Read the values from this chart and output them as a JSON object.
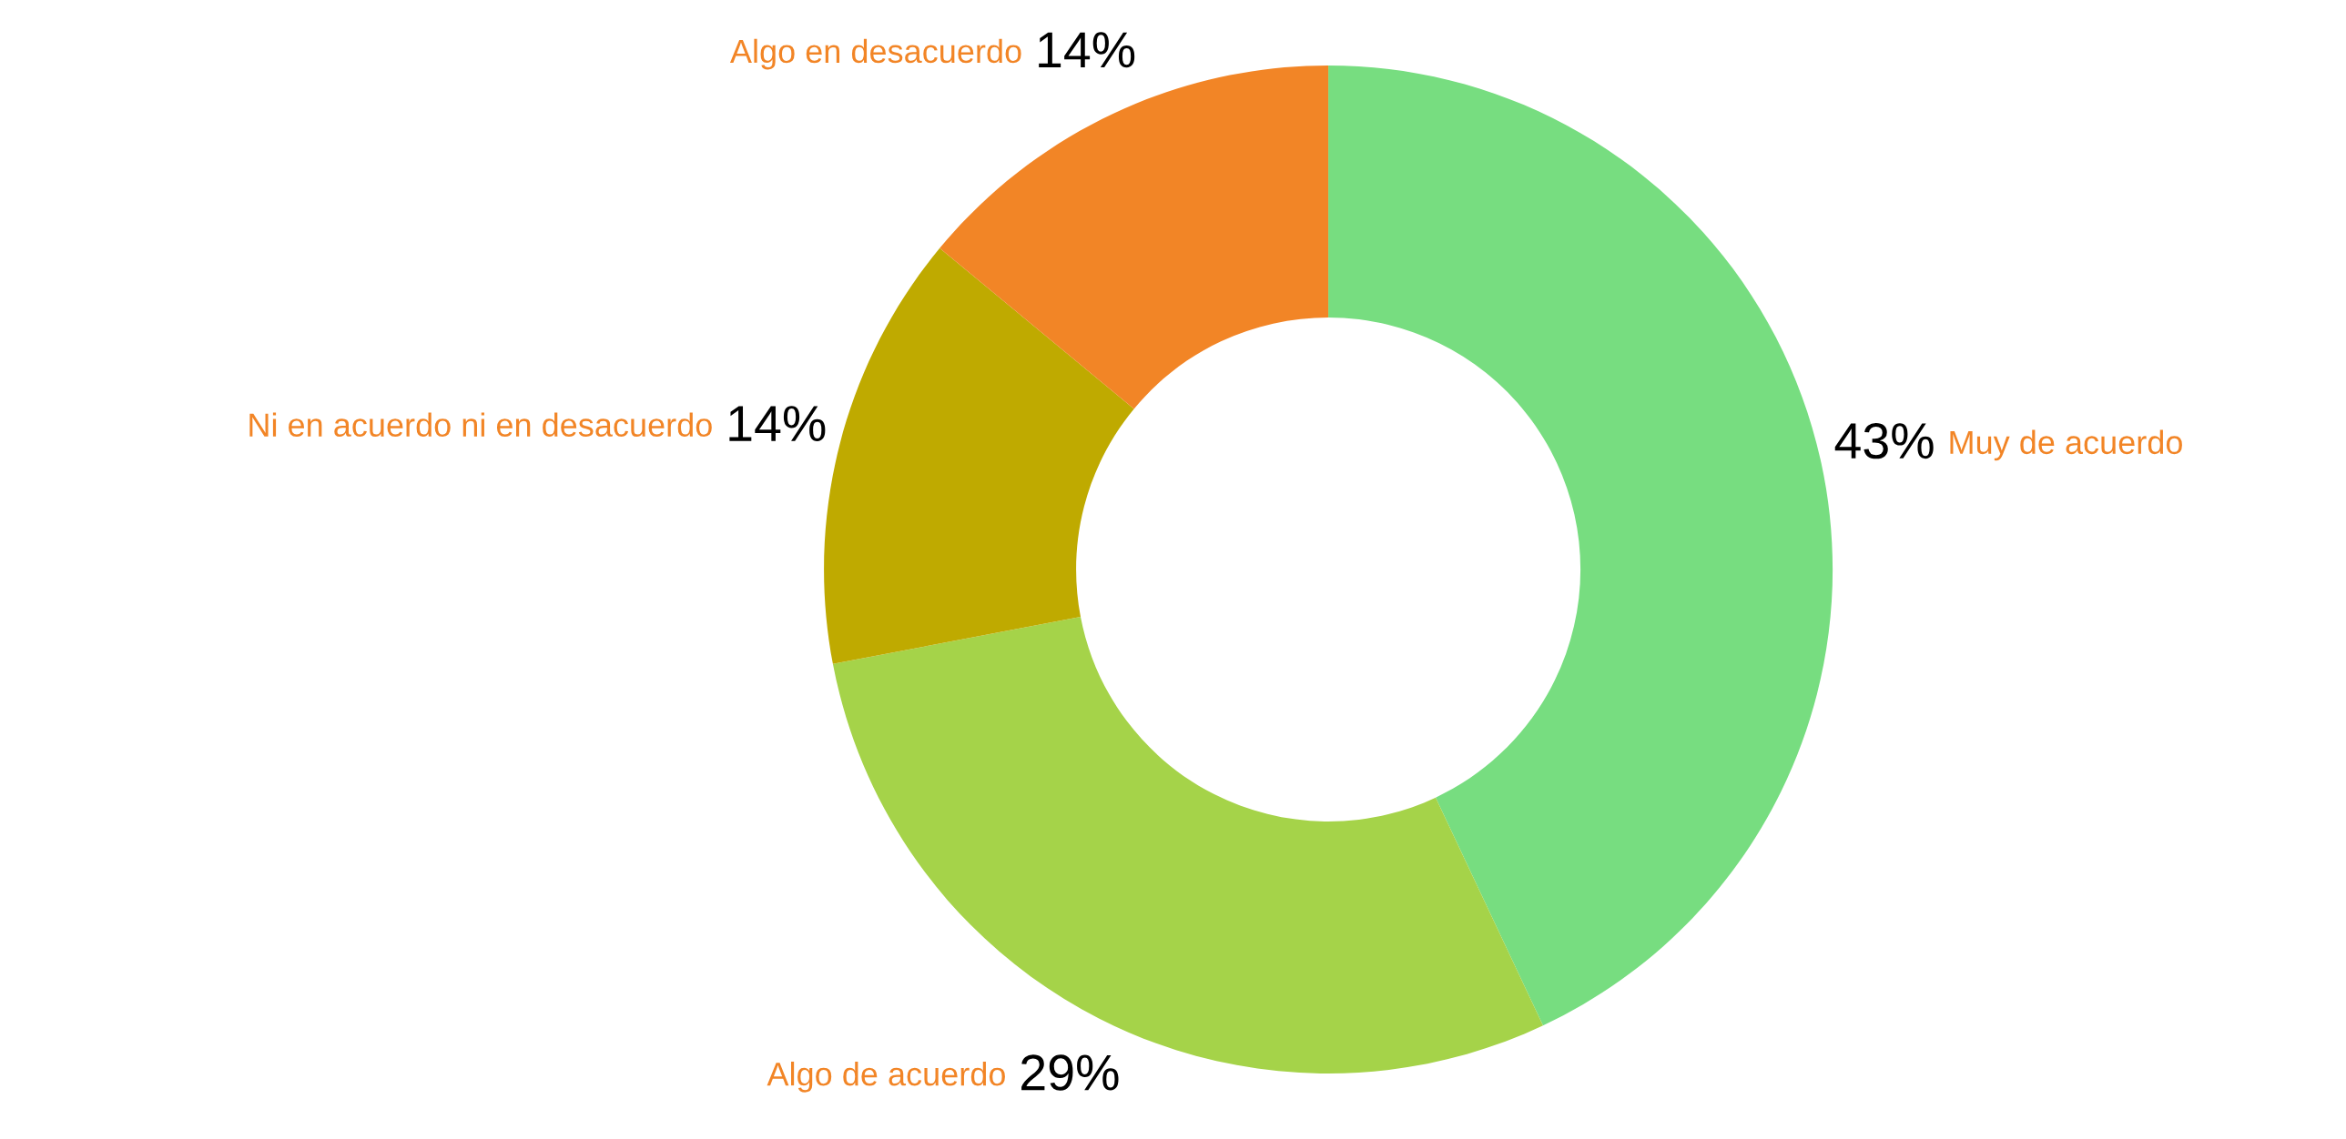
{
  "chart_data": {
    "type": "donut",
    "categories": [
      "Muy de acuerdo",
      "Algo de acuerdo",
      "Ni en acuerdo ni en desacuerdo",
      "Algo en desacuerdo"
    ],
    "values": [
      43,
      29,
      14,
      14
    ],
    "colors": [
      "#77dd80",
      "#a5d349",
      "#bfaa00",
      "#f28526"
    ],
    "value_labels": [
      "43%",
      "29%",
      "14%",
      "14%"
    ],
    "legend": false
  }
}
